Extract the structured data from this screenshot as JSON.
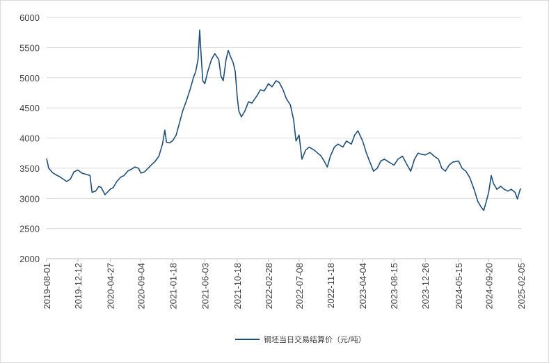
{
  "chart_data": {
    "type": "line",
    "title": "",
    "xlabel": "",
    "ylabel": "",
    "ylim": [
      2000,
      6000
    ],
    "grid": true,
    "legend_position": "bottom",
    "y_ticks": [
      6000,
      5500,
      5000,
      4500,
      4000,
      3500,
      3000,
      2500,
      2000
    ],
    "x_ticks": [
      "2019-08-01",
      "2019-12-12",
      "2020-04-27",
      "2020-09-04",
      "2021-01-18",
      "2021-06-03",
      "2021-10-18",
      "2022-02-28",
      "2022-07-08",
      "2022-11-18",
      "2023-04-04",
      "2023-08-15",
      "2023-12-26",
      "2024-05-15",
      "2024-09-20",
      "2025-02-05"
    ],
    "series": [
      {
        "name": "钢坯当日交易结算价（元/吨）",
        "color": "#1f4e79",
        "points": [
          [
            "2019-08-01",
            3660
          ],
          [
            "2019-08-10",
            3500
          ],
          [
            "2019-08-25",
            3430
          ],
          [
            "2019-09-10",
            3390
          ],
          [
            "2019-09-25",
            3360
          ],
          [
            "2019-10-10",
            3320
          ],
          [
            "2019-10-25",
            3280
          ],
          [
            "2019-11-10",
            3320
          ],
          [
            "2019-11-25",
            3440
          ],
          [
            "2019-12-12",
            3470
          ],
          [
            "2019-12-28",
            3420
          ],
          [
            "2020-01-15",
            3400
          ],
          [
            "2020-02-01",
            3380
          ],
          [
            "2020-02-10",
            3100
          ],
          [
            "2020-02-25",
            3120
          ],
          [
            "2020-03-10",
            3200
          ],
          [
            "2020-03-20",
            3180
          ],
          [
            "2020-04-05",
            3060
          ],
          [
            "2020-04-27",
            3150
          ],
          [
            "2020-05-10",
            3180
          ],
          [
            "2020-05-25",
            3280
          ],
          [
            "2020-06-10",
            3350
          ],
          [
            "2020-06-25",
            3380
          ],
          [
            "2020-07-10",
            3450
          ],
          [
            "2020-07-25",
            3480
          ],
          [
            "2020-08-10",
            3520
          ],
          [
            "2020-08-25",
            3500
          ],
          [
            "2020-09-04",
            3420
          ],
          [
            "2020-09-20",
            3440
          ],
          [
            "2020-10-05",
            3500
          ],
          [
            "2020-10-20",
            3560
          ],
          [
            "2020-11-05",
            3620
          ],
          [
            "2020-11-20",
            3700
          ],
          [
            "2020-12-05",
            3900
          ],
          [
            "2020-12-15",
            4130
          ],
          [
            "2020-12-22",
            3930
          ],
          [
            "2021-01-05",
            3920
          ],
          [
            "2021-01-18",
            3960
          ],
          [
            "2021-02-01",
            4050
          ],
          [
            "2021-02-15",
            4250
          ],
          [
            "2021-03-01",
            4450
          ],
          [
            "2021-03-15",
            4600
          ],
          [
            "2021-04-01",
            4800
          ],
          [
            "2021-04-15",
            5000
          ],
          [
            "2021-04-25",
            5100
          ],
          [
            "2021-05-05",
            5300
          ],
          [
            "2021-05-12",
            5790
          ],
          [
            "2021-05-18",
            5380
          ],
          [
            "2021-05-25",
            4950
          ],
          [
            "2021-06-03",
            4900
          ],
          [
            "2021-06-15",
            5100
          ],
          [
            "2021-07-01",
            5300
          ],
          [
            "2021-07-15",
            5400
          ],
          [
            "2021-08-01",
            5300
          ],
          [
            "2021-08-10",
            5030
          ],
          [
            "2021-08-20",
            4950
          ],
          [
            "2021-09-01",
            5300
          ],
          [
            "2021-09-10",
            5450
          ],
          [
            "2021-09-20",
            5350
          ],
          [
            "2021-10-01",
            5250
          ],
          [
            "2021-10-10",
            5100
          ],
          [
            "2021-10-18",
            4700
          ],
          [
            "2021-10-25",
            4450
          ],
          [
            "2021-11-05",
            4350
          ],
          [
            "2021-11-20",
            4450
          ],
          [
            "2021-12-05",
            4600
          ],
          [
            "2021-12-20",
            4580
          ],
          [
            "2022-01-10",
            4700
          ],
          [
            "2022-01-25",
            4800
          ],
          [
            "2022-02-10",
            4780
          ],
          [
            "2022-02-28",
            4900
          ],
          [
            "2022-03-15",
            4850
          ],
          [
            "2022-04-01",
            4950
          ],
          [
            "2022-04-15",
            4920
          ],
          [
            "2022-05-01",
            4800
          ],
          [
            "2022-05-15",
            4650
          ],
          [
            "2022-06-01",
            4550
          ],
          [
            "2022-06-15",
            4300
          ],
          [
            "2022-06-25",
            3950
          ],
          [
            "2022-07-08",
            4050
          ],
          [
            "2022-07-20",
            3650
          ],
          [
            "2022-08-05",
            3800
          ],
          [
            "2022-08-20",
            3850
          ],
          [
            "2022-09-10",
            3800
          ],
          [
            "2022-09-25",
            3750
          ],
          [
            "2022-10-10",
            3700
          ],
          [
            "2022-10-25",
            3600
          ],
          [
            "2022-11-05",
            3520
          ],
          [
            "2022-11-18",
            3700
          ],
          [
            "2022-12-05",
            3850
          ],
          [
            "2022-12-20",
            3900
          ],
          [
            "2023-01-10",
            3850
          ],
          [
            "2023-01-25",
            3950
          ],
          [
            "2023-02-15",
            3900
          ],
          [
            "2023-03-01",
            4050
          ],
          [
            "2023-03-15",
            4120
          ],
          [
            "2023-04-04",
            3950
          ],
          [
            "2023-04-20",
            3750
          ],
          [
            "2023-05-05",
            3600
          ],
          [
            "2023-05-20",
            3450
          ],
          [
            "2023-06-05",
            3500
          ],
          [
            "2023-06-20",
            3620
          ],
          [
            "2023-07-05",
            3650
          ],
          [
            "2023-07-25",
            3600
          ],
          [
            "2023-08-15",
            3550
          ],
          [
            "2023-09-01",
            3650
          ],
          [
            "2023-09-20",
            3700
          ],
          [
            "2023-10-10",
            3550
          ],
          [
            "2023-10-25",
            3450
          ],
          [
            "2023-11-10",
            3650
          ],
          [
            "2023-11-25",
            3750
          ],
          [
            "2023-12-10",
            3730
          ],
          [
            "2023-12-26",
            3720
          ],
          [
            "2024-01-15",
            3760
          ],
          [
            "2024-02-01",
            3700
          ],
          [
            "2024-02-20",
            3650
          ],
          [
            "2024-03-05",
            3500
          ],
          [
            "2024-03-20",
            3450
          ],
          [
            "2024-04-05",
            3550
          ],
          [
            "2024-04-20",
            3600
          ],
          [
            "2024-05-15",
            3620
          ],
          [
            "2024-05-30",
            3500
          ],
          [
            "2024-06-15",
            3450
          ],
          [
            "2024-07-01",
            3350
          ],
          [
            "2024-07-20",
            3150
          ],
          [
            "2024-08-05",
            2950
          ],
          [
            "2024-08-20",
            2850
          ],
          [
            "2024-08-30",
            2800
          ],
          [
            "2024-09-10",
            2950
          ],
          [
            "2024-09-20",
            3100
          ],
          [
            "2024-10-01",
            3380
          ],
          [
            "2024-10-10",
            3250
          ],
          [
            "2024-10-25",
            3150
          ],
          [
            "2024-11-10",
            3200
          ],
          [
            "2024-11-25",
            3150
          ],
          [
            "2024-12-10",
            3120
          ],
          [
            "2024-12-25",
            3150
          ],
          [
            "2025-01-10",
            3100
          ],
          [
            "2025-01-20",
            2990
          ],
          [
            "2025-02-01",
            3150
          ],
          [
            "2025-02-05",
            3160
          ]
        ]
      }
    ]
  },
  "legend": {
    "label": "钢坯当日交易结算价（元/吨）",
    "color": "#1f4e79"
  },
  "colors": {
    "grid": "#d9d9d9",
    "axis": "#bfbfbf",
    "text": "#404040"
  }
}
